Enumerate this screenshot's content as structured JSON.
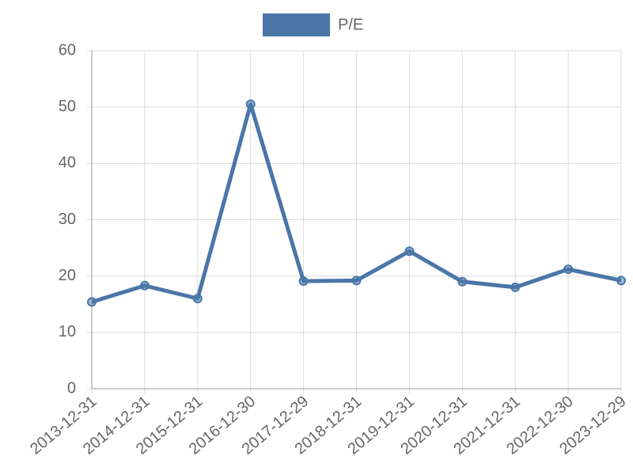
{
  "chart_data": {
    "type": "line",
    "categories": [
      "2013-12-31",
      "2014-12-31",
      "2015-12-31",
      "2016-12-30",
      "2017-12-29",
      "2018-12-31",
      "2019-12-31",
      "2020-12-31",
      "2021-12-31",
      "2022-12-30",
      "2023-12-29"
    ],
    "series": [
      {
        "name": "P/E",
        "color": "#4a76a8",
        "values": [
          15.4,
          18.3,
          16.0,
          50.5,
          19.1,
          19.2,
          24.4,
          19.0,
          18.0,
          21.2,
          19.2
        ]
      }
    ],
    "ylim": [
      0,
      60
    ],
    "yticks": [
      0,
      10,
      20,
      30,
      40,
      50,
      60
    ],
    "grid": true,
    "legend": "top"
  }
}
